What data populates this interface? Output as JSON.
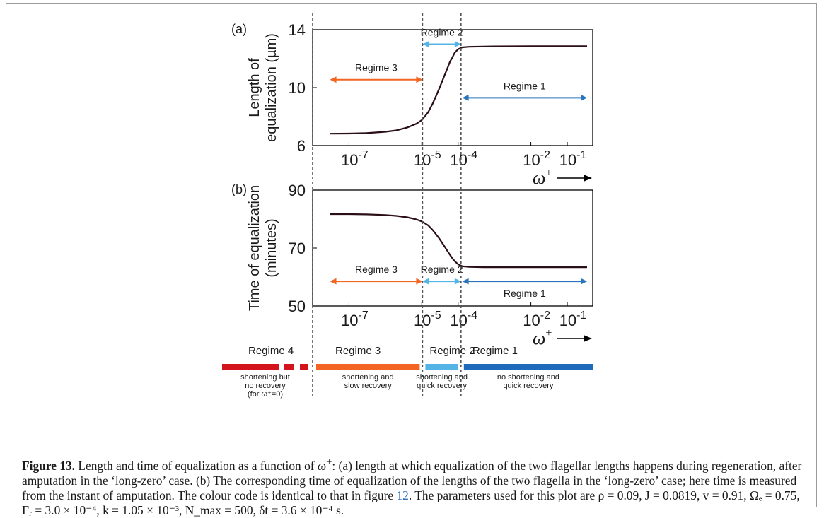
{
  "chart_data": [
    {
      "type": "line",
      "panel": "(a)",
      "ylabel_line1": "Length of",
      "ylabel_line2": "equalization (µm)",
      "xlabel": "ω",
      "xlabel_sup": "+",
      "x_scale": "log",
      "xlim": [
        1e-08,
        0.5
      ],
      "ylim": [
        6,
        14
      ],
      "yticks": [
        "6",
        "10",
        "14"
      ],
      "xticks": [
        {
          "base": "10",
          "exp": "-7",
          "value": 1e-07
        },
        {
          "base": "10",
          "exp": "-5",
          "value": 1e-05
        },
        {
          "base": "10",
          "exp": "-4",
          "value": 0.0001
        },
        {
          "base": "10",
          "exp": "-2",
          "value": 0.01
        },
        {
          "base": "10",
          "exp": "-1",
          "value": 0.1
        }
      ],
      "x": [
        3e-08,
        1e-07,
        3e-07,
        1e-06,
        2e-06,
        4e-06,
        7e-06,
        1e-05,
        1.5e-05,
        2e-05,
        3e-05,
        4e-05,
        5e-05,
        6e-05,
        7e-05,
        8e-05,
        0.0001,
        0.00013,
        0.0002,
        0.0005,
        0.001,
        0.01,
        0.1,
        0.35
      ],
      "y": [
        6.82,
        6.83,
        6.86,
        6.95,
        7.05,
        7.25,
        7.5,
        7.75,
        8.3,
        8.9,
        9.9,
        10.7,
        11.3,
        11.8,
        12.1,
        12.4,
        12.65,
        12.78,
        12.82,
        12.84,
        12.85,
        12.86,
        12.86,
        12.86
      ],
      "regimes": [
        {
          "label": "Regime 3",
          "from": 3e-08,
          "to": 1.05e-05,
          "y": 10.55,
          "color": "#f26522"
        },
        {
          "label": "Regime 2",
          "from": 1.05e-05,
          "to": 0.00012,
          "y": 13.0,
          "color": "#55b4e6"
        },
        {
          "label": "Regime 1",
          "from": 0.00013,
          "to": 0.35,
          "y": 9.3,
          "color": "#2a75bd"
        }
      ]
    },
    {
      "type": "line",
      "panel": "(b)",
      "ylabel_line1": "Time of equalization",
      "ylabel_line2": "(minutes)",
      "xlabel": "ω",
      "xlabel_sup": "+",
      "x_scale": "log",
      "xlim": [
        1e-08,
        0.5
      ],
      "ylim": [
        50,
        90
      ],
      "yticks": [
        "50",
        "70",
        "90"
      ],
      "xticks": [
        {
          "base": "10",
          "exp": "-7",
          "value": 1e-07
        },
        {
          "base": "10",
          "exp": "-5",
          "value": 1e-05
        },
        {
          "base": "10",
          "exp": "-4",
          "value": 0.0001
        },
        {
          "base": "10",
          "exp": "-2",
          "value": 0.01
        },
        {
          "base": "10",
          "exp": "-1",
          "value": 0.1
        }
      ],
      "x": [
        3e-08,
        1e-07,
        3e-07,
        1e-06,
        2e-06,
        4e-06,
        7e-06,
        1e-05,
        1.5e-05,
        2e-05,
        3e-05,
        4e-05,
        5e-05,
        6e-05,
        7e-05,
        8e-05,
        0.0001,
        0.00013,
        0.0002,
        0.0005,
        0.001,
        0.01,
        0.1,
        0.35
      ],
      "y": [
        81.7,
        81.7,
        81.6,
        81.4,
        81.1,
        80.6,
        79.9,
        79.2,
        77.8,
        76.2,
        73.4,
        71.0,
        69.1,
        67.6,
        66.4,
        65.5,
        64.4,
        63.7,
        63.5,
        63.4,
        63.4,
        63.4,
        63.4,
        63.4
      ],
      "regimes": [
        {
          "label": "Regime 3",
          "from": 3e-08,
          "to": 1.05e-05,
          "y": 58.5,
          "color": "#f26522"
        },
        {
          "label": "Regime 2",
          "from": 1.05e-05,
          "to": 0.00012,
          "y": 58.5,
          "color": "#55b4e6"
        },
        {
          "label": "Regime 1",
          "from": 0.00013,
          "to": 0.35,
          "y": 58.5,
          "color": "#2a75bd"
        }
      ]
    }
  ],
  "regime_legend": [
    {
      "label": "Regime 4",
      "desc": [
        "shortening but",
        "no recovery",
        "(for ω⁺=0)"
      ],
      "color": "#d4141c",
      "dashed": true
    },
    {
      "label": "Regime 3",
      "desc": [
        "shortening and",
        "slow recovery"
      ],
      "color": "#f26522",
      "dashed": false
    },
    {
      "label": "Regime 2",
      "desc": [
        "shortening and",
        "quick recovery"
      ],
      "color": "#55b4e6",
      "dashed": false
    },
    {
      "label": "Regime 1",
      "desc": [
        "no shortening and",
        "quick recovery"
      ],
      "color": "#1f6bbb",
      "dashed": false
    }
  ],
  "boundaries": [
    1.05e-05,
    0.00012
  ],
  "caption": {
    "label": "Figure 13.",
    "text1": " Length and time of equalization as a function of ",
    "omega": "ω",
    "sup": "+",
    "text2": ": (a) length at which equalization of the two flagellar lengths happens during regeneration, after amputation in the ‘long-zero’ case. (b) The corresponding time of equalization of the lengths of the two flagella in the ‘long-zero’ case; here time is measured from the instant of amputation. The colour code is identical to that in figure ",
    "figref": "12",
    "text3": ". The parameters used for this plot are ",
    "params": "ρ = 0.09, J = 0.0819, v = 0.91, Ωₑ = 0.75, Γᵣ = 3.0 × 10⁻⁴, k = 1.05 × 10⁻³, N_max = 500, δt = 3.6 × 10⁻⁴ s."
  },
  "colors": {
    "curve": "#2b0f16",
    "dash": "#555555",
    "text": "#1a1a1a"
  }
}
